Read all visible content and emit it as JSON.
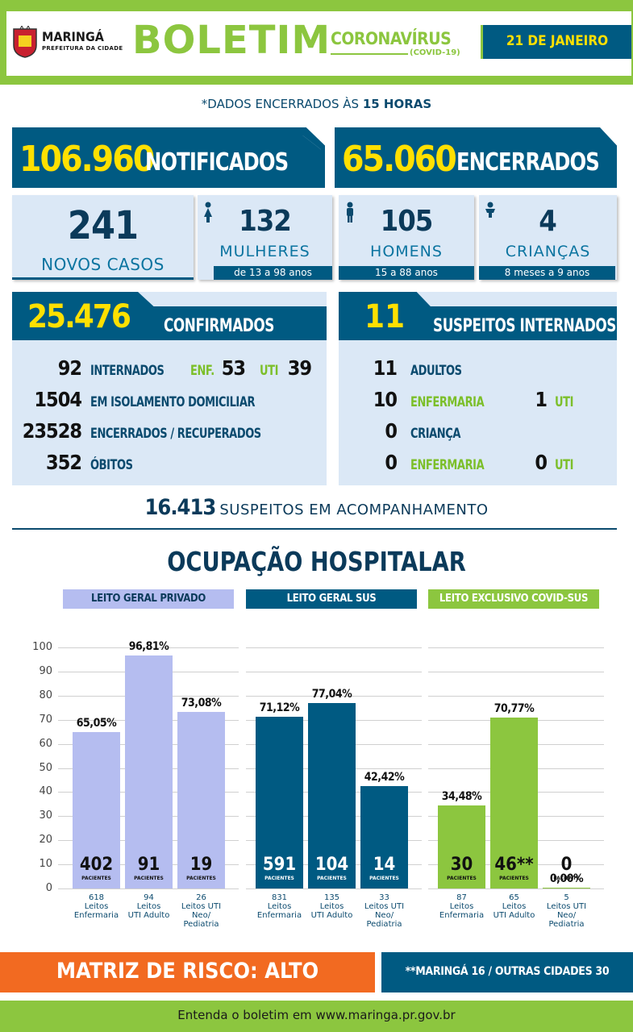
{
  "header": {
    "city": "MARINGÁ",
    "city_sub": "PREFEITURA DA CIDADE",
    "title": "BOLETIM",
    "subtitle": "CORONAVÍRUS",
    "subtitle2": "(COVID-19)",
    "date": "21 DE JANEIRO"
  },
  "note": {
    "prefix": "*DADOS ENCERRADOS ÀS ",
    "hour": "15 HORAS"
  },
  "notificados": {
    "value": "106.960",
    "label": "NOTIFICADOS"
  },
  "encerrados": {
    "value": "65.060",
    "label": "ENCERRADOS"
  },
  "novos_casos": {
    "value": "241",
    "label": "NOVOS CASOS"
  },
  "mulheres": {
    "value": "132",
    "label": "MULHERES",
    "range": "de 13 a 98 anos"
  },
  "homens": {
    "value": "105",
    "label": "HOMENS",
    "range": "15 a 88 anos"
  },
  "criancas": {
    "value": "4",
    "label": "CRIANÇAS",
    "range": "8 meses a 9 anos"
  },
  "confirmados": {
    "value": "25.476",
    "label": "CONFIRMADOS",
    "rows": [
      {
        "num": "92",
        "label": "INTERNADOS",
        "enf_label": "ENF.",
        "enf": "53",
        "uti_label": "UTI",
        "uti": "39"
      },
      {
        "num": "1504",
        "label": "EM ISOLAMENTO DOMICILIAR"
      },
      {
        "num": "23528",
        "label": "ENCERRADOS / RECUPERADOS"
      },
      {
        "num": "352",
        "label": "ÓBITOS"
      }
    ]
  },
  "suspeitos": {
    "value": "11",
    "label": "SUSPEITOS INTERNADOS",
    "rows": [
      {
        "num": "11",
        "label": "ADULTOS"
      },
      {
        "num": "10",
        "label": "ENFERMARIA",
        "uti": "1",
        "uti_label": "UTI"
      },
      {
        "num": "0",
        "label": "CRIANÇA"
      },
      {
        "num": "0",
        "label": "ENFERMARIA",
        "uti": "0",
        "uti_label": "UTI"
      }
    ]
  },
  "acompanhamento": {
    "value": "16.413",
    "label": "SUSPEITOS EM ACOMPANHAMENTO"
  },
  "ocupacao": {
    "title": "OCUPAÇÃO HOSPITALAR"
  },
  "chart_data": {
    "type": "bar",
    "y_ticks": [
      "100",
      "90",
      "80",
      "70",
      "60",
      "50",
      "40",
      "30",
      "20",
      "10",
      "0"
    ],
    "ylim": [
      0,
      100
    ],
    "grid": true,
    "groups": [
      {
        "name": "LEITO GERAL PRIVADO",
        "color": "#b5bdf0",
        "text_color": "#111111",
        "bars": [
          {
            "value": 65.05,
            "label": "65,05%",
            "pacientes": "402",
            "sub": "PACIENTES",
            "total": "618",
            "x1": "Leitos",
            "x2": "Enfermaria",
            "x3": ""
          },
          {
            "value": 96.81,
            "label": "96,81%",
            "pacientes": "91",
            "sub": "PACIENTES",
            "total": "94",
            "x1": "Leitos",
            "x2": "UTI Adulto",
            "x3": ""
          },
          {
            "value": 73.08,
            "label": "73,08%",
            "pacientes": "19",
            "sub": "PACIENTES",
            "total": "26",
            "x1": "Leitos UTI",
            "x2": "Neo/",
            "x3": "Pediatria"
          }
        ]
      },
      {
        "name": "LEITO GERAL SUS",
        "color": "#005a82",
        "text_color": "#ffffff",
        "bars": [
          {
            "value": 71.12,
            "label": "71,12%",
            "pacientes": "591",
            "sub": "PACIENTES",
            "total": "831",
            "x1": "Leitos",
            "x2": "Enfermaria",
            "x3": ""
          },
          {
            "value": 77.04,
            "label": "77,04%",
            "pacientes": "104",
            "sub": "PACIENTES",
            "total": "135",
            "x1": "Leitos",
            "x2": "UTI Adulto",
            "x3": ""
          },
          {
            "value": 42.42,
            "label": "42,42%",
            "pacientes": "14",
            "sub": "PACIENTES",
            "total": "33",
            "x1": "Leitos UTI",
            "x2": "Neo/",
            "x3": "Pediatria"
          }
        ]
      },
      {
        "name": "LEITO EXCLUSIVO COVID-SUS",
        "color": "#8cc63f",
        "text_color": "#111111",
        "bars": [
          {
            "value": 34.48,
            "label": "34,48%",
            "pacientes": "30",
            "sub": "PACIENTES",
            "total": "87",
            "x1": "Leitos",
            "x2": "Enfermaria",
            "x3": ""
          },
          {
            "value": 70.77,
            "label": "70,77%",
            "pacientes": "46**",
            "sub": "PACIENTES",
            "total": "65",
            "x1": "Leitos",
            "x2": "UTI Adulto",
            "x3": ""
          },
          {
            "value": 0.0,
            "label": "0,00%",
            "pacientes": "0",
            "sub": "PACIENTE",
            "total": "5",
            "x1": "Leitos UTI",
            "x2": "Neo/",
            "x3": "Pediatria"
          }
        ]
      }
    ]
  },
  "footer": {
    "risco": "MATRIZ DE RISCO: ALTO",
    "cidades": "**MARINGÁ 16 / OUTRAS CIDADES 30",
    "site": "Entenda o boletim em www.maringa.pr.gov.br"
  },
  "colors": {
    "green": "#8cc63f",
    "navy": "#005a82",
    "orange": "#f26a21",
    "dark_text": "#0b4a6e"
  }
}
